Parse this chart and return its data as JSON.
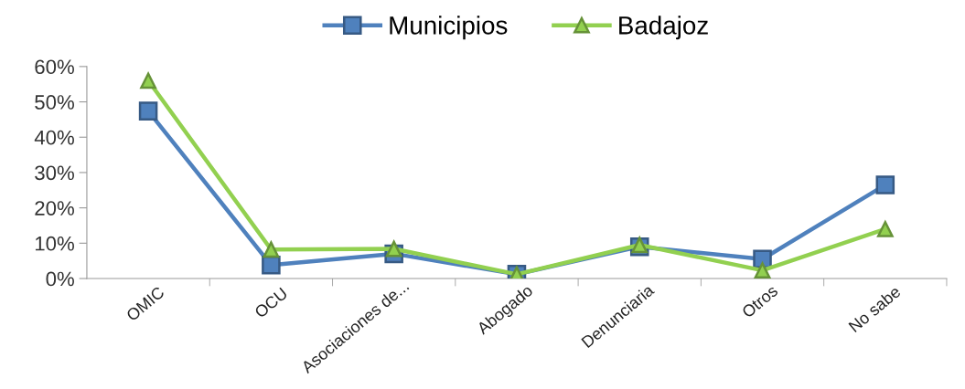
{
  "chart_data": {
    "type": "line",
    "categories": [
      "OMIC",
      "OCU",
      "Asociaciones de...",
      "Abogado",
      "Denunciaria",
      "Otros",
      "No sabe"
    ],
    "series": [
      {
        "name": "Municipios",
        "color": "#4f81bd",
        "marker": "square",
        "values": [
          47.4,
          3.8,
          7,
          1.2,
          9,
          5.5,
          26.5
        ]
      },
      {
        "name": "Badajoz",
        "color": "#92d050",
        "marker": "triangle",
        "values": [
          56,
          8.2,
          8.4,
          1.2,
          9.5,
          2.3,
          14
        ]
      }
    ],
    "ylim": [
      0,
      60
    ],
    "yticks": [
      {
        "value": 0,
        "label": "0%"
      },
      {
        "value": 10,
        "label": "10%"
      },
      {
        "value": 20,
        "label": "20%"
      },
      {
        "value": 30,
        "label": "30%"
      },
      {
        "value": 40,
        "label": "40%"
      },
      {
        "value": 50,
        "label": "50%"
      },
      {
        "value": 60,
        "label": "60%"
      }
    ],
    "grid": false,
    "legend": "top",
    "line_style": "solid"
  }
}
